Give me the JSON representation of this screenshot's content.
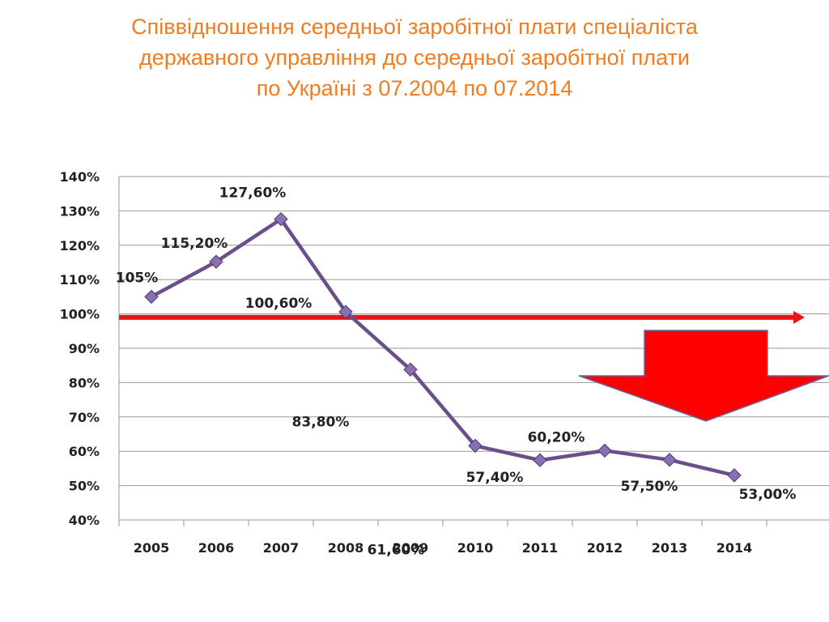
{
  "title_lines": [
    "Співвідношення середньої заробітної плати спеціаліста",
    "державного управління до середньої заробітної  плати",
    "по Україні з 07.2004 по 07.2014"
  ],
  "chart_data": {
    "type": "line",
    "title": "Співвідношення середньої заробітної плати спеціаліста державного управління до середньої заробітної  плати по Україні з 07.2004 по 07.2014",
    "categories": [
      "2005",
      "2006",
      "2007",
      "2008",
      "2009",
      "2010",
      "2011",
      "2012",
      "2013",
      "2014"
    ],
    "series": [
      {
        "values": [
          105,
          115.2,
          127.6,
          100.6,
          83.8,
          61.6,
          57.4,
          60.2,
          57.5,
          53.0
        ],
        "labels": [
          "105%",
          "115,20%",
          "127,60%",
          "100,60%",
          "83,80%",
          "61,60%",
          "57,40%",
          "60,20%",
          "57,50%",
          "53,00%"
        ],
        "color": "#6b4f8a"
      }
    ],
    "y_ticks": [
      "40%",
      "50%",
      "60%",
      "70%",
      "80%",
      "90%",
      "100%",
      "110%",
      "120%",
      "130%",
      "140%"
    ],
    "ylim": [
      40,
      140
    ],
    "grid": true,
    "reference_line": {
      "value": 99,
      "color": "#e8141b"
    },
    "down_arrow": {
      "color": "#ff0000"
    },
    "xlabel": "",
    "ylabel": ""
  }
}
